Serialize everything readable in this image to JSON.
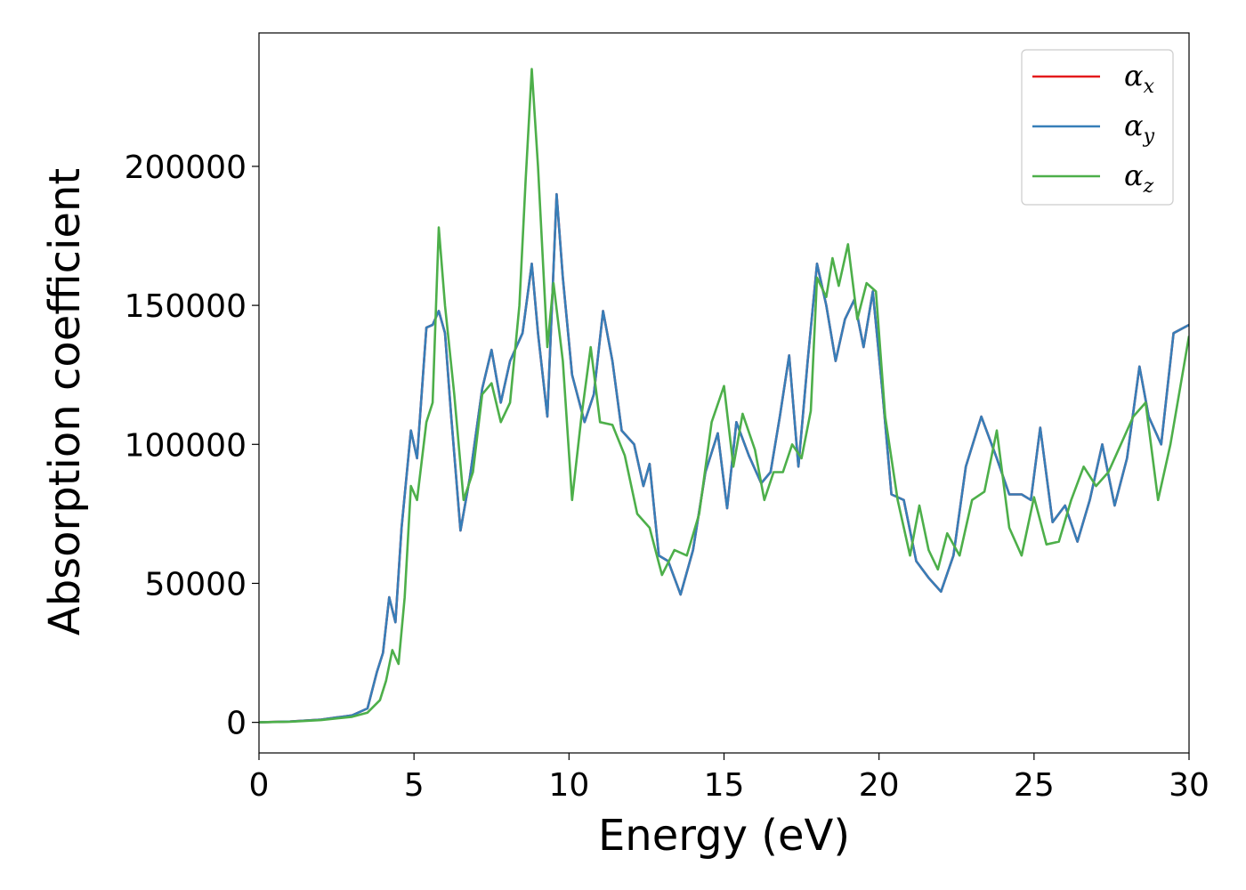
{
  "chart_data": {
    "type": "line",
    "title": "",
    "xlabel": "Energy (eV)",
    "ylabel": "Absorption coefficient",
    "xlim": [
      0,
      30
    ],
    "ylim": [
      -11000,
      248000
    ],
    "xticks": [
      0,
      5,
      10,
      15,
      20,
      25,
      30
    ],
    "yticks": [
      0,
      50000,
      100000,
      150000,
      200000
    ],
    "grid": false,
    "legend_position": "top-right",
    "series": [
      {
        "name": "α",
        "subscript": "x",
        "color": "#e41a1c",
        "x": [
          0,
          1,
          2,
          3,
          3.5,
          3.8,
          4.0,
          4.2,
          4.4,
          4.6,
          4.9,
          5.1,
          5.4,
          5.6,
          5.8,
          6.0,
          6.2,
          6.5,
          6.8,
          7.2,
          7.5,
          7.8,
          8.1,
          8.5,
          8.8,
          9.0,
          9.3,
          9.6,
          9.8,
          10.1,
          10.5,
          10.8,
          11.1,
          11.4,
          11.7,
          12.1,
          12.4,
          12.6,
          12.9,
          13.2,
          13.6,
          14.0,
          14.4,
          14.8,
          15.1,
          15.4,
          15.8,
          16.2,
          16.5,
          16.8,
          17.1,
          17.4,
          17.7,
          18.0,
          18.3,
          18.6,
          18.9,
          19.2,
          19.5,
          19.8,
          20.1,
          20.4,
          20.8,
          21.2,
          21.6,
          22.0,
          22.4,
          22.8,
          23.3,
          23.8,
          24.2,
          24.6,
          24.9,
          25.2,
          25.6,
          26.0,
          26.4,
          26.8,
          27.2,
          27.6,
          28.0,
          28.4,
          28.7,
          29.1,
          29.5,
          30.0
        ],
        "y": [
          0,
          300,
          1000,
          2500,
          5000,
          18000,
          25000,
          45000,
          36000,
          70000,
          105000,
          95000,
          142000,
          143000,
          148000,
          140000,
          110000,
          69000,
          88000,
          120000,
          134000,
          115000,
          130000,
          140000,
          165000,
          140000,
          110000,
          190000,
          160000,
          125000,
          108000,
          118000,
          148000,
          130000,
          105000,
          100000,
          85000,
          93000,
          60000,
          58000,
          46000,
          62000,
          90000,
          104000,
          77000,
          108000,
          96000,
          86000,
          90000,
          110000,
          132000,
          92000,
          130000,
          165000,
          150000,
          130000,
          145000,
          152000,
          135000,
          155000,
          120000,
          82000,
          80000,
          58000,
          52000,
          47000,
          60000,
          92000,
          110000,
          95000,
          82000,
          82000,
          80000,
          106000,
          72000,
          78000,
          65000,
          80000,
          100000,
          78000,
          95000,
          128000,
          110000,
          100000,
          140000,
          143000
        ]
      },
      {
        "name": "α",
        "subscript": "y",
        "color": "#377eb8",
        "x": [
          0,
          1,
          2,
          3,
          3.5,
          3.8,
          4.0,
          4.2,
          4.4,
          4.6,
          4.9,
          5.1,
          5.4,
          5.6,
          5.8,
          6.0,
          6.2,
          6.5,
          6.8,
          7.2,
          7.5,
          7.8,
          8.1,
          8.5,
          8.8,
          9.0,
          9.3,
          9.6,
          9.8,
          10.1,
          10.5,
          10.8,
          11.1,
          11.4,
          11.7,
          12.1,
          12.4,
          12.6,
          12.9,
          13.2,
          13.6,
          14.0,
          14.4,
          14.8,
          15.1,
          15.4,
          15.8,
          16.2,
          16.5,
          16.8,
          17.1,
          17.4,
          17.7,
          18.0,
          18.3,
          18.6,
          18.9,
          19.2,
          19.5,
          19.8,
          20.1,
          20.4,
          20.8,
          21.2,
          21.6,
          22.0,
          22.4,
          22.8,
          23.3,
          23.8,
          24.2,
          24.6,
          24.9,
          25.2,
          25.6,
          26.0,
          26.4,
          26.8,
          27.2,
          27.6,
          28.0,
          28.4,
          28.7,
          29.1,
          29.5,
          30.0
        ],
        "y": [
          0,
          300,
          1000,
          2500,
          5000,
          18000,
          25000,
          45000,
          36000,
          70000,
          105000,
          95000,
          142000,
          143000,
          148000,
          140000,
          110000,
          69000,
          88000,
          120000,
          134000,
          115000,
          130000,
          140000,
          165000,
          140000,
          110000,
          190000,
          160000,
          125000,
          108000,
          118000,
          148000,
          130000,
          105000,
          100000,
          85000,
          93000,
          60000,
          58000,
          46000,
          62000,
          90000,
          104000,
          77000,
          108000,
          96000,
          86000,
          90000,
          110000,
          132000,
          92000,
          130000,
          165000,
          150000,
          130000,
          145000,
          152000,
          135000,
          155000,
          120000,
          82000,
          80000,
          58000,
          52000,
          47000,
          60000,
          92000,
          110000,
          95000,
          82000,
          82000,
          80000,
          106000,
          72000,
          78000,
          65000,
          80000,
          100000,
          78000,
          95000,
          128000,
          110000,
          100000,
          140000,
          143000
        ]
      },
      {
        "name": "α",
        "subscript": "z",
        "color": "#4daf4a",
        "x": [
          0,
          1,
          2,
          3,
          3.5,
          3.9,
          4.1,
          4.3,
          4.5,
          4.7,
          4.9,
          5.1,
          5.4,
          5.6,
          5.8,
          6.0,
          6.3,
          6.6,
          6.9,
          7.2,
          7.5,
          7.8,
          8.1,
          8.4,
          8.6,
          8.8,
          9.0,
          9.3,
          9.5,
          9.8,
          10.1,
          10.4,
          10.7,
          11.0,
          11.4,
          11.8,
          12.2,
          12.6,
          13.0,
          13.4,
          13.8,
          14.2,
          14.6,
          15.0,
          15.3,
          15.6,
          16.0,
          16.3,
          16.6,
          16.9,
          17.2,
          17.5,
          17.8,
          18.0,
          18.3,
          18.5,
          18.7,
          19.0,
          19.3,
          19.6,
          19.9,
          20.2,
          20.6,
          21.0,
          21.3,
          21.6,
          21.9,
          22.2,
          22.6,
          23.0,
          23.4,
          23.8,
          24.2,
          24.6,
          25.0,
          25.4,
          25.8,
          26.2,
          26.6,
          27.0,
          27.4,
          27.8,
          28.2,
          28.6,
          29.0,
          29.4,
          30.0
        ],
        "y": [
          0,
          250,
          800,
          2000,
          3500,
          8000,
          15000,
          26000,
          21000,
          45000,
          85000,
          80000,
          108000,
          115000,
          178000,
          150000,
          118000,
          80000,
          90000,
          118000,
          122000,
          108000,
          115000,
          150000,
          195000,
          235000,
          200000,
          135000,
          158000,
          130000,
          80000,
          110000,
          135000,
          108000,
          107000,
          96000,
          75000,
          70000,
          53000,
          62000,
          60000,
          75000,
          108000,
          121000,
          92000,
          111000,
          98000,
          80000,
          90000,
          90000,
          100000,
          95000,
          112000,
          160000,
          153000,
          167000,
          157000,
          172000,
          145000,
          158000,
          155000,
          110000,
          80000,
          60000,
          78000,
          62000,
          55000,
          68000,
          60000,
          80000,
          83000,
          105000,
          70000,
          60000,
          81000,
          64000,
          65000,
          80000,
          92000,
          85000,
          90000,
          100000,
          110000,
          115000,
          80000,
          100000,
          139000
        ]
      }
    ]
  }
}
